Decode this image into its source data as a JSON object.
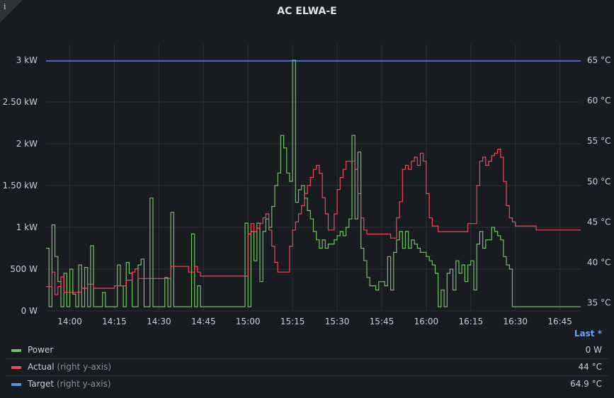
{
  "panel": {
    "title": "AC ELWA-E",
    "info_icon": "i",
    "legend_header": "Last *"
  },
  "legend": [
    {
      "name": "Power",
      "axis_note": "",
      "value": "0 W",
      "color": "#73bf69"
    },
    {
      "name": "Actual",
      "axis_note": " (right y-axis)",
      "value": "44 °C",
      "color": "#f2495c"
    },
    {
      "name": "Target",
      "axis_note": " (right y-axis)",
      "value": "64.9 °C",
      "color": "#5794f2"
    }
  ],
  "chart_data": {
    "type": "line",
    "x_unit": "minutes (clock time)",
    "xlim": [
      "13:52",
      "16:52"
    ],
    "x_ticks": [
      "14:00",
      "14:15",
      "14:30",
      "14:45",
      "15:00",
      "15:15",
      "15:30",
      "15:45",
      "16:00",
      "16:15",
      "16:30",
      "16:45"
    ],
    "y_left": {
      "label": "",
      "unit": "kW",
      "ylim": [
        0,
        3
      ],
      "ticks": [
        "0 W",
        "500 W",
        "1 kW",
        "1.50 kW",
        "2 kW",
        "2.50 kW",
        "3 kW"
      ]
    },
    "y_right": {
      "label": "",
      "unit": "°C",
      "ylim": [
        34,
        65
      ],
      "ticks": [
        "35 °C",
        "40 °C",
        "45 °C",
        "50 °C",
        "55 °C",
        "60 °C",
        "65 °C"
      ]
    },
    "grid": true,
    "series": [
      {
        "name": "Power",
        "axis": "left",
        "color": "#73bf69",
        "points": [
          [
            "13:52",
            0.75
          ],
          [
            "13:53",
            0.05
          ],
          [
            "13:54",
            1.03
          ],
          [
            "13:55",
            0.65
          ],
          [
            "13:56",
            0.35
          ],
          [
            "13:57",
            0.05
          ],
          [
            "13:58",
            0.45
          ],
          [
            "13:59",
            0.05
          ],
          [
            "14:00",
            0.5
          ],
          [
            "14:01",
            0.2
          ],
          [
            "14:02",
            0.05
          ],
          [
            "14:03",
            0.55
          ],
          [
            "14:04",
            0.05
          ],
          [
            "14:05",
            0.52
          ],
          [
            "14:06",
            0.05
          ],
          [
            "14:07",
            0.78
          ],
          [
            "14:08",
            0.05
          ],
          [
            "14:09",
            0.05
          ],
          [
            "14:10",
            0.05
          ],
          [
            "14:11",
            0.22
          ],
          [
            "14:12",
            0.05
          ],
          [
            "14:13",
            0.05
          ],
          [
            "14:14",
            0.05
          ],
          [
            "14:15",
            0.05
          ],
          [
            "14:16",
            0.55
          ],
          [
            "14:17",
            0.3
          ],
          [
            "14:18",
            0.05
          ],
          [
            "14:19",
            0.58
          ],
          [
            "14:20",
            0.45
          ],
          [
            "14:21",
            0.05
          ],
          [
            "14:22",
            0.05
          ],
          [
            "14:23",
            0.55
          ],
          [
            "14:24",
            0.62
          ],
          [
            "14:25",
            0.05
          ],
          [
            "14:26",
            0.05
          ],
          [
            "14:27",
            1.35
          ],
          [
            "14:28",
            0.05
          ],
          [
            "14:29",
            0.05
          ],
          [
            "14:30",
            0.05
          ],
          [
            "14:31",
            0.05
          ],
          [
            "14:32",
            0.4
          ],
          [
            "14:33",
            0.05
          ],
          [
            "14:34",
            1.18
          ],
          [
            "14:35",
            0.05
          ],
          [
            "14:36",
            0.05
          ],
          [
            "14:37",
            0.05
          ],
          [
            "14:38",
            0.05
          ],
          [
            "14:39",
            0.05
          ],
          [
            "14:40",
            0.05
          ],
          [
            "14:41",
            0.92
          ],
          [
            "14:42",
            0.05
          ],
          [
            "14:43",
            0.3
          ],
          [
            "14:44",
            0.05
          ],
          [
            "14:45",
            0.05
          ],
          [
            "14:46",
            0.05
          ],
          [
            "14:47",
            0.05
          ],
          [
            "14:48",
            0.05
          ],
          [
            "14:49",
            0.05
          ],
          [
            "14:50",
            0.05
          ],
          [
            "14:51",
            0.05
          ],
          [
            "14:52",
            0.05
          ],
          [
            "14:53",
            0.05
          ],
          [
            "14:54",
            0.05
          ],
          [
            "14:55",
            0.05
          ],
          [
            "14:56",
            0.05
          ],
          [
            "14:57",
            0.05
          ],
          [
            "14:58",
            0.05
          ],
          [
            "14:59",
            1.05
          ],
          [
            "15:00",
            0.05
          ],
          [
            "15:01",
            0.95
          ],
          [
            "15:02",
            0.6
          ],
          [
            "15:03",
            1.05
          ],
          [
            "15:04",
            0.35
          ],
          [
            "15:05",
            0.95
          ],
          [
            "15:06",
            1.1
          ],
          [
            "15:07",
            1.0
          ],
          [
            "15:08",
            1.25
          ],
          [
            "15:09",
            1.5
          ],
          [
            "15:10",
            1.65
          ],
          [
            "15:11",
            2.1
          ],
          [
            "15:12",
            1.95
          ],
          [
            "15:13",
            1.65
          ],
          [
            "15:14",
            1.55
          ],
          [
            "15:15",
            3.0
          ],
          [
            "15:16",
            1.3
          ],
          [
            "15:17",
            1.45
          ],
          [
            "15:18",
            1.5
          ],
          [
            "15:19",
            1.35
          ],
          [
            "15:20",
            1.2
          ],
          [
            "15:21",
            1.1
          ],
          [
            "15:22",
            0.95
          ],
          [
            "15:23",
            0.85
          ],
          [
            "15:24",
            0.75
          ],
          [
            "15:25",
            0.85
          ],
          [
            "15:26",
            0.75
          ],
          [
            "15:27",
            0.8
          ],
          [
            "15:28",
            0.8
          ],
          [
            "15:29",
            0.85
          ],
          [
            "15:30",
            0.9
          ],
          [
            "15:31",
            0.95
          ],
          [
            "15:32",
            0.9
          ],
          [
            "15:33",
            1.0
          ],
          [
            "15:34",
            1.1
          ],
          [
            "15:35",
            2.1
          ],
          [
            "15:36",
            1.1
          ],
          [
            "15:37",
            1.9
          ],
          [
            "15:38",
            0.75
          ],
          [
            "15:39",
            0.6
          ],
          [
            "15:40",
            0.4
          ],
          [
            "15:41",
            0.3
          ],
          [
            "15:42",
            0.3
          ],
          [
            "15:43",
            0.25
          ],
          [
            "15:44",
            0.35
          ],
          [
            "15:45",
            0.35
          ],
          [
            "15:46",
            0.3
          ],
          [
            "15:47",
            0.65
          ],
          [
            "15:48",
            0.25
          ],
          [
            "15:49",
            0.7
          ],
          [
            "15:50",
            0.85
          ],
          [
            "15:51",
            0.95
          ],
          [
            "15:52",
            0.75
          ],
          [
            "15:53",
            0.95
          ],
          [
            "15:54",
            0.75
          ],
          [
            "15:55",
            0.85
          ],
          [
            "15:56",
            0.8
          ],
          [
            "15:57",
            0.75
          ],
          [
            "15:58",
            0.7
          ],
          [
            "15:59",
            0.7
          ],
          [
            "16:00",
            0.65
          ],
          [
            "16:01",
            0.6
          ],
          [
            "16:02",
            0.55
          ],
          [
            "16:03",
            0.45
          ],
          [
            "16:04",
            0.05
          ],
          [
            "16:05",
            0.25
          ],
          [
            "16:06",
            0.05
          ],
          [
            "16:07",
            0.45
          ],
          [
            "16:08",
            0.5
          ],
          [
            "16:09",
            0.25
          ],
          [
            "16:10",
            0.6
          ],
          [
            "16:11",
            0.45
          ],
          [
            "16:12",
            0.55
          ],
          [
            "16:13",
            0.35
          ],
          [
            "16:14",
            0.55
          ],
          [
            "16:15",
            0.6
          ],
          [
            "16:16",
            0.25
          ],
          [
            "16:17",
            0.8
          ],
          [
            "16:18",
            0.95
          ],
          [
            "16:19",
            0.75
          ],
          [
            "16:20",
            0.85
          ],
          [
            "16:21",
            0.85
          ],
          [
            "16:22",
            1.0
          ],
          [
            "16:23",
            0.95
          ],
          [
            "16:24",
            0.9
          ],
          [
            "16:25",
            0.85
          ],
          [
            "16:26",
            0.65
          ],
          [
            "16:27",
            0.55
          ],
          [
            "16:28",
            0.5
          ],
          [
            "16:29",
            0.05
          ],
          [
            "16:52",
            0.05
          ]
        ]
      },
      {
        "name": "Actual",
        "axis": "right",
        "color": "#f2495c",
        "points": [
          [
            "13:52",
            37.0
          ],
          [
            "13:54",
            38.8
          ],
          [
            "13:55",
            36.0
          ],
          [
            "13:56",
            37.0
          ],
          [
            "13:57",
            38.2
          ],
          [
            "13:58",
            36.3
          ],
          [
            "14:02",
            36.3
          ],
          [
            "14:04",
            36.8
          ],
          [
            "14:06",
            37.3
          ],
          [
            "14:08",
            36.8
          ],
          [
            "14:12",
            36.8
          ],
          [
            "14:15",
            37.1
          ],
          [
            "14:19",
            37.8
          ],
          [
            "14:21",
            38.8
          ],
          [
            "14:22",
            39.2
          ],
          [
            "14:23",
            38.0
          ],
          [
            "14:31",
            38.0
          ],
          [
            "14:32",
            38.0
          ],
          [
            "14:34",
            39.5
          ],
          [
            "14:38",
            39.5
          ],
          [
            "14:40",
            38.8
          ],
          [
            "14:42",
            39.5
          ],
          [
            "14:43",
            38.8
          ],
          [
            "14:44",
            38.3
          ],
          [
            "14:56",
            38.3
          ],
          [
            "14:59",
            38.3
          ],
          [
            "15:00",
            43.5
          ],
          [
            "15:01",
            44.8
          ],
          [
            "15:02",
            43.8
          ],
          [
            "15:03",
            44.2
          ],
          [
            "15:04",
            44.8
          ],
          [
            "15:05",
            45.5
          ],
          [
            "15:06",
            46.0
          ],
          [
            "15:07",
            44.0
          ],
          [
            "15:08",
            42.0
          ],
          [
            "15:09",
            40.0
          ],
          [
            "15:10",
            38.8
          ],
          [
            "15:13",
            38.8
          ],
          [
            "15:14",
            42.0
          ],
          [
            "15:15",
            44.0
          ],
          [
            "15:16",
            45.0
          ],
          [
            "15:17",
            46.0
          ],
          [
            "15:18",
            47.0
          ],
          [
            "15:19",
            48.5
          ],
          [
            "15:20",
            49.5
          ],
          [
            "15:21",
            50.5
          ],
          [
            "15:22",
            51.5
          ],
          [
            "15:23",
            52.0
          ],
          [
            "15:24",
            51.0
          ],
          [
            "15:25",
            48.0
          ],
          [
            "15:26",
            46.0
          ],
          [
            "15:27",
            44.0
          ],
          [
            "15:28",
            44.0
          ],
          [
            "15:29",
            46.0
          ],
          [
            "15:30",
            49.0
          ],
          [
            "15:31",
            50.5
          ],
          [
            "15:32",
            51.5
          ],
          [
            "15:33",
            52.5
          ],
          [
            "15:34",
            52.5
          ],
          [
            "15:35",
            52.5
          ],
          [
            "15:36",
            51.5
          ],
          [
            "15:37",
            48.5
          ],
          [
            "15:38",
            45.5
          ],
          [
            "15:39",
            44.0
          ],
          [
            "15:40",
            43.5
          ],
          [
            "15:42",
            43.5
          ],
          [
            "15:44",
            43.5
          ],
          [
            "15:47",
            43.5
          ],
          [
            "15:48",
            43.0
          ],
          [
            "15:49",
            43.0
          ],
          [
            "15:50",
            45.5
          ],
          [
            "15:51",
            47.5
          ],
          [
            "15:52",
            51.5
          ],
          [
            "15:53",
            52.0
          ],
          [
            "15:54",
            51.5
          ],
          [
            "15:55",
            52.5
          ],
          [
            "15:56",
            53.0
          ],
          [
            "15:57",
            52.0
          ],
          [
            "15:58",
            53.5
          ],
          [
            "15:59",
            52.5
          ],
          [
            "16:00",
            48.5
          ],
          [
            "16:01",
            45.5
          ],
          [
            "16:02",
            44.5
          ],
          [
            "16:03",
            44.5
          ],
          [
            "16:04",
            43.8
          ],
          [
            "16:06",
            43.8
          ],
          [
            "16:12",
            43.8
          ],
          [
            "16:13",
            43.8
          ],
          [
            "16:14",
            44.8
          ],
          [
            "16:16",
            44.8
          ],
          [
            "16:17",
            49.5
          ],
          [
            "16:18",
            52.5
          ],
          [
            "16:19",
            53.0
          ],
          [
            "16:20",
            52.0
          ],
          [
            "16:21",
            52.5
          ],
          [
            "16:22",
            53.2
          ],
          [
            "16:23",
            53.5
          ],
          [
            "16:24",
            54.0
          ],
          [
            "16:25",
            53.0
          ],
          [
            "16:26",
            50.0
          ],
          [
            "16:27",
            47.0
          ],
          [
            "16:28",
            45.5
          ],
          [
            "16:29",
            45.0
          ],
          [
            "16:30",
            44.5
          ],
          [
            "16:36",
            44.5
          ],
          [
            "16:37",
            44.0
          ],
          [
            "16:52",
            44.0
          ]
        ]
      },
      {
        "name": "Target",
        "axis": "right",
        "color": "#5794f2",
        "points": [
          [
            "13:52",
            64.9
          ],
          [
            "16:52",
            64.9
          ]
        ]
      }
    ]
  }
}
